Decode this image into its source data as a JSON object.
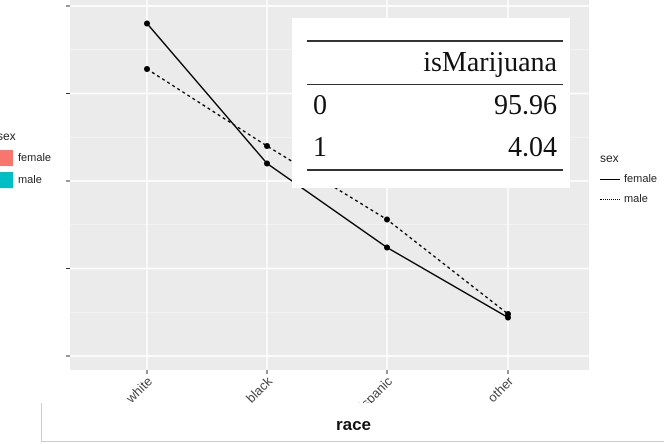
{
  "chart_data": {
    "type": "line",
    "categories": [
      "white",
      "black",
      "hispanic",
      "other"
    ],
    "series": [
      {
        "name": "female",
        "values": [
          0.95,
          0.55,
          0.31,
          0.11
        ],
        "style": "solid"
      },
      {
        "name": "male",
        "values": [
          0.82,
          0.6,
          0.39,
          0.12
        ],
        "style": "dotted"
      }
    ],
    "xlabel": "race",
    "ylim": [
      0.0,
      1.0
    ],
    "grid": true,
    "panel_background": "#ebebeb",
    "line_color": "#000000"
  },
  "fill_legend": {
    "title": "sex",
    "items": [
      {
        "label": "female",
        "color": "#f8766d"
      },
      {
        "label": "male",
        "color": "#00bfc4"
      }
    ]
  },
  "linetype_legend": {
    "title": "sex",
    "items": [
      {
        "label": "female",
        "style": "solid"
      },
      {
        "label": "male",
        "style": "dotted"
      }
    ]
  },
  "table": {
    "header": [
      "",
      "isMarijuana"
    ],
    "rows": [
      {
        "index": "0",
        "value": "95.96"
      },
      {
        "index": "1",
        "value": "4.04"
      }
    ]
  }
}
